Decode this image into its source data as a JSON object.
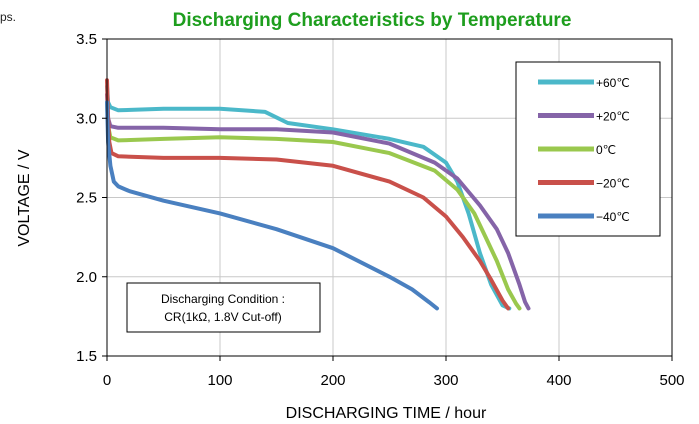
{
  "corner_text": "ps.",
  "chart_data": {
    "type": "line",
    "title": "Discharging Characteristics by Temperature",
    "xlabel": "DISCHARGING TIME / hour",
    "ylabel": "VOLTAGE / V",
    "xlim": [
      0,
      500
    ],
    "ylim": [
      1.5,
      3.5
    ],
    "x_ticks": [
      "0",
      "100",
      "200",
      "300",
      "400",
      "500"
    ],
    "y_ticks": [
      "1.5",
      "2.0",
      "2.5",
      "3.0",
      "3.5"
    ],
    "x_tick_values": [
      0,
      100,
      200,
      300,
      400,
      500
    ],
    "y_tick_values": [
      1.5,
      2.0,
      2.5,
      3.0,
      3.5
    ],
    "grid": true,
    "legend_position": "top-right",
    "annotation": {
      "line1": "Discharging Condition :",
      "line2": "CR(1kΩ, 1.8V Cut-off)"
    },
    "colors": {
      "title": "#1e9e1e",
      "grid": "#c8c8c8",
      "axis": "#000000"
    },
    "series": [
      {
        "name": "+60℃",
        "color": "#4bb8c9",
        "points": [
          [
            0,
            3.2
          ],
          [
            1,
            3.1
          ],
          [
            3,
            3.07
          ],
          [
            10,
            3.05
          ],
          [
            50,
            3.06
          ],
          [
            100,
            3.06
          ],
          [
            140,
            3.04
          ],
          [
            160,
            2.97
          ],
          [
            200,
            2.93
          ],
          [
            250,
            2.87
          ],
          [
            280,
            2.82
          ],
          [
            300,
            2.72
          ],
          [
            310,
            2.6
          ],
          [
            320,
            2.4
          ],
          [
            330,
            2.15
          ],
          [
            340,
            1.95
          ],
          [
            350,
            1.82
          ],
          [
            356,
            1.8
          ]
        ]
      },
      {
        "name": "+20℃",
        "color": "#8564a8",
        "points": [
          [
            0,
            3.15
          ],
          [
            1,
            3.0
          ],
          [
            3,
            2.95
          ],
          [
            10,
            2.94
          ],
          [
            50,
            2.94
          ],
          [
            100,
            2.93
          ],
          [
            150,
            2.93
          ],
          [
            200,
            2.91
          ],
          [
            250,
            2.84
          ],
          [
            290,
            2.72
          ],
          [
            310,
            2.62
          ],
          [
            330,
            2.45
          ],
          [
            345,
            2.3
          ],
          [
            355,
            2.15
          ],
          [
            365,
            1.95
          ],
          [
            370,
            1.84
          ],
          [
            373,
            1.8
          ]
        ]
      },
      {
        "name": "0℃",
        "color": "#9ac84e",
        "points": [
          [
            0,
            3.1
          ],
          [
            1,
            2.95
          ],
          [
            3,
            2.88
          ],
          [
            10,
            2.86
          ],
          [
            50,
            2.87
          ],
          [
            100,
            2.88
          ],
          [
            150,
            2.87
          ],
          [
            200,
            2.85
          ],
          [
            250,
            2.78
          ],
          [
            290,
            2.67
          ],
          [
            310,
            2.55
          ],
          [
            325,
            2.4
          ],
          [
            335,
            2.25
          ],
          [
            345,
            2.1
          ],
          [
            355,
            1.92
          ],
          [
            362,
            1.83
          ],
          [
            365,
            1.8
          ]
        ]
      },
      {
        "name": "−20℃",
        "color": "#c9504a",
        "points": [
          [
            0,
            3.24
          ],
          [
            1,
            3.0
          ],
          [
            2,
            2.85
          ],
          [
            4,
            2.78
          ],
          [
            10,
            2.76
          ],
          [
            50,
            2.75
          ],
          [
            100,
            2.75
          ],
          [
            150,
            2.74
          ],
          [
            200,
            2.7
          ],
          [
            250,
            2.6
          ],
          [
            280,
            2.5
          ],
          [
            300,
            2.38
          ],
          [
            315,
            2.25
          ],
          [
            330,
            2.1
          ],
          [
            340,
            1.98
          ],
          [
            350,
            1.85
          ],
          [
            355,
            1.8
          ]
        ]
      },
      {
        "name": "−40℃",
        "color": "#4a80c0",
        "points": [
          [
            0,
            3.1
          ],
          [
            1,
            2.85
          ],
          [
            3,
            2.7
          ],
          [
            6,
            2.6
          ],
          [
            10,
            2.57
          ],
          [
            20,
            2.54
          ],
          [
            50,
            2.48
          ],
          [
            100,
            2.4
          ],
          [
            150,
            2.3
          ],
          [
            200,
            2.18
          ],
          [
            250,
            2.0
          ],
          [
            270,
            1.92
          ],
          [
            285,
            1.84
          ],
          [
            292,
            1.8
          ]
        ]
      }
    ]
  }
}
